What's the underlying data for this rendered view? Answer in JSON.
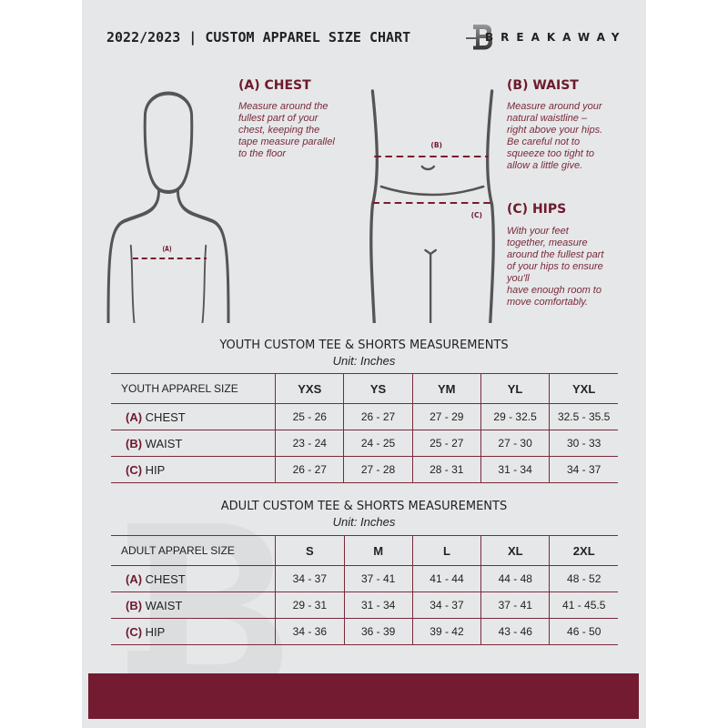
{
  "header": {
    "title": "2022/2023  |  CUSTOM APPAREL SIZE CHART",
    "brand": "BREAKAWAY"
  },
  "logo": {
    "letter": "B"
  },
  "guide": {
    "chest": {
      "heading": "(A) CHEST",
      "text": [
        "Measure around the",
        "fullest part of your",
        "chest, keeping the",
        "tape measure parallel",
        "to the floor"
      ],
      "marker": "(A)"
    },
    "waist": {
      "heading": "(B) WAIST",
      "text": [
        "Measure around your",
        "natural waistline –",
        "right above your hips.",
        "Be careful not to",
        "squeeze too tight to",
        "allow a little give."
      ],
      "marker": "(B)"
    },
    "hips": {
      "heading": "(C) HIPS",
      "text": [
        "With your feet",
        "together, measure",
        "around the fullest part",
        "of your hips to ensure",
        "you'll",
        "have enough room to",
        "move comfortably."
      ],
      "marker": "(C)"
    }
  },
  "youth": {
    "title": "YOUTH CUSTOM TEE & SHORTS MEASUREMENTS",
    "unit": "Unit: Inches",
    "label": "YOUTH APPAREL SIZE",
    "sizes": [
      "YXS",
      "YS",
      "YM",
      "YL",
      "YXL"
    ],
    "rows": [
      {
        "code": "(A)",
        "name": "CHEST",
        "values": [
          "25 - 26",
          "26 - 27",
          "27 - 29",
          "29 - 32.5",
          "32.5 - 35.5"
        ]
      },
      {
        "code": "(B)",
        "name": "WAIST",
        "values": [
          "23 - 24",
          "24 - 25",
          "25 - 27",
          "27 - 30",
          "30 - 33"
        ]
      },
      {
        "code": "(C)",
        "name": "HIP",
        "values": [
          "26 - 27",
          "27 - 28",
          "28 - 31",
          "31 - 34",
          "34 - 37"
        ]
      }
    ]
  },
  "adult": {
    "title": "ADULT CUSTOM TEE & SHORTS MEASUREMENTS",
    "unit": "Unit: Inches",
    "label": "ADULT APPAREL SIZE",
    "sizes": [
      "S",
      "M",
      "L",
      "XL",
      "2XL"
    ],
    "rows": [
      {
        "code": "(A)",
        "name": "CHEST",
        "values": [
          "34 - 37",
          "37 - 41",
          "41 - 44",
          "44 - 48",
          "48 - 52"
        ]
      },
      {
        "code": "(B)",
        "name": "WAIST",
        "values": [
          "29 - 31",
          "31 - 34",
          "34 - 37",
          "37 - 41",
          "41 - 45.5"
        ]
      },
      {
        "code": "(C)",
        "name": "HIP",
        "values": [
          "34 - 36",
          "36 - 39",
          "39 - 42",
          "43 - 46",
          "46 - 50"
        ]
      }
    ]
  },
  "colors": {
    "accent": "#731b31",
    "background": "#e6e7e8",
    "text": "#222222"
  }
}
